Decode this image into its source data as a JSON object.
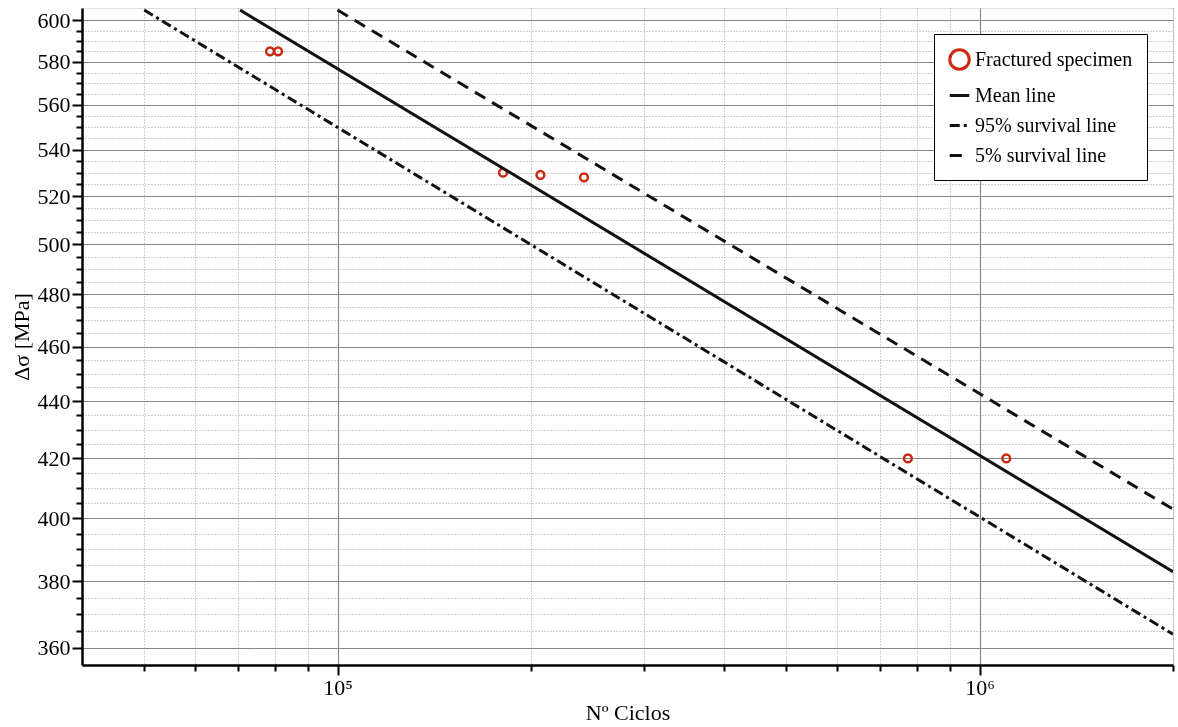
{
  "chart_data": {
    "type": "scatter",
    "xlabel": "Nº Ciclos",
    "ylabel": "Δσ [MPa]",
    "log": "xy",
    "grid": true,
    "legend": "top right",
    "xlim": [
      40000,
      2000000
    ],
    "ylim": [
      355,
      606
    ],
    "xticks": [
      {
        "value": 50000,
        "label": null
      },
      {
        "value": 60000,
        "label": null
      },
      {
        "value": 70000,
        "label": null
      },
      {
        "value": 80000,
        "label": null
      },
      {
        "value": 90000,
        "label": null
      },
      {
        "value": 100000,
        "label": "10⁵"
      },
      {
        "value": 200000,
        "label": null
      },
      {
        "value": 300000,
        "label": null
      },
      {
        "value": 400000,
        "label": null
      },
      {
        "value": 500000,
        "label": null
      },
      {
        "value": 600000,
        "label": null
      },
      {
        "value": 700000,
        "label": null
      },
      {
        "value": 800000,
        "label": null
      },
      {
        "value": 900000,
        "label": null
      },
      {
        "value": 1000000,
        "label": "10⁶"
      },
      {
        "value": 2000000,
        "label": null
      }
    ],
    "yticks": [
      360,
      {
        "value": 365,
        "label": null
      },
      {
        "value": 370,
        "label": null
      },
      {
        "value": 375,
        "label": null
      },
      380,
      {
        "value": 385,
        "label": null
      },
      {
        "value": 390,
        "label": null
      },
      {
        "value": 395,
        "label": null
      },
      400,
      {
        "value": 405,
        "label": null
      },
      {
        "value": 410,
        "label": null
      },
      {
        "value": 415,
        "label": null
      },
      420,
      {
        "value": 425,
        "label": null
      },
      {
        "value": 430,
        "label": null
      },
      {
        "value": 435,
        "label": null
      },
      440,
      {
        "value": 445,
        "label": null
      },
      {
        "value": 450,
        "label": null
      },
      {
        "value": 455,
        "label": null
      },
      460,
      {
        "value": 465,
        "label": null
      },
      {
        "value": 470,
        "label": null
      },
      {
        "value": 475,
        "label": null
      },
      480,
      {
        "value": 485,
        "label": null
      },
      {
        "value": 490,
        "label": null
      },
      {
        "value": 495,
        "label": null
      },
      500,
      {
        "value": 505,
        "label": null
      },
      {
        "value": 510,
        "label": null
      },
      {
        "value": 515,
        "label": null
      },
      520,
      {
        "value": 525,
        "label": null
      },
      {
        "value": 530,
        "label": null
      },
      {
        "value": 535,
        "label": null
      },
      540,
      {
        "value": 545,
        "label": null
      },
      {
        "value": 550,
        "label": null
      },
      {
        "value": 555,
        "label": null
      },
      560,
      {
        "value": 565,
        "label": null
      },
      {
        "value": 570,
        "label": null
      },
      {
        "value": 575,
        "label": null
      },
      580,
      {
        "value": 585,
        "label": null
      },
      {
        "value": 590,
        "label": null
      },
      {
        "value": 595,
        "label": null
      },
      600
    ],
    "series": [
      {
        "name": "Fractured specimen",
        "marker": "circle",
        "color": "#cc2a10",
        "x": [
          78500,
          80800,
          181000,
          207000,
          242000,
          773000,
          1100000
        ],
        "values": [
          585,
          585,
          530,
          529,
          528,
          420,
          420
        ]
      },
      {
        "name": "Mean line",
        "type": "line",
        "line_style": "solid",
        "color": "#111111",
        "x": [
          70500,
          2000000
        ],
        "values": [
          605,
          383
        ]
      },
      {
        "name": "95% survival line",
        "type": "line",
        "line_style": "dashdot",
        "color": "#111111",
        "x": [
          50000,
          2000000
        ],
        "values": [
          605,
          364
        ]
      },
      {
        "name": "5% survival line",
        "type": "line",
        "line_style": "dashed",
        "color": "#111111",
        "x": [
          100000,
          2000000
        ],
        "values": [
          605,
          403
        ]
      }
    ]
  }
}
